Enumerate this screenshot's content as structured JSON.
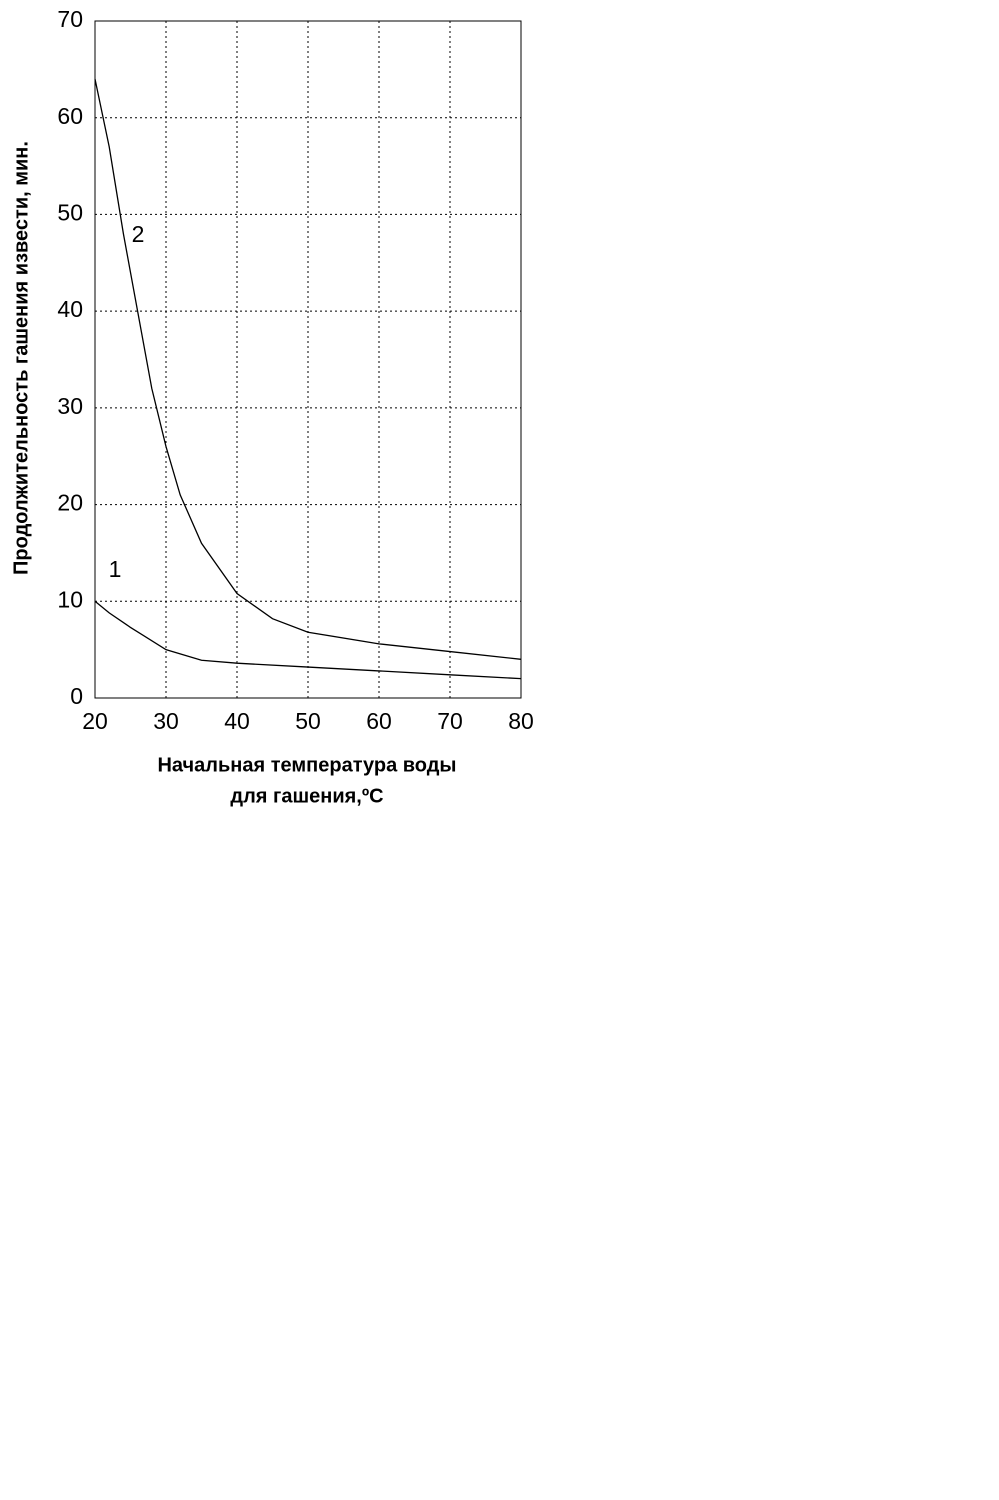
{
  "chart_data": {
    "type": "line",
    "y_label": "Продолжительность гашения извести, мин.",
    "x_label": [
      "Начальная температура воды",
      "для гашения,ºC"
    ],
    "xlim": [
      20,
      80
    ],
    "xticks": [
      20,
      30,
      40,
      50,
      60,
      70,
      80
    ],
    "ylim": [
      0,
      70
    ],
    "yticks": [
      0,
      10,
      20,
      30,
      40,
      50,
      60,
      70
    ],
    "grid": true,
    "series": [
      {
        "name": "1",
        "color": "#000000",
        "x": [
          20,
          22,
          25,
          30,
          35,
          40,
          50,
          60,
          70,
          80
        ],
        "values": [
          10,
          8.8,
          7.3,
          5.0,
          3.9,
          3.6,
          3.2,
          2.8,
          2.4,
          2.0
        ]
      },
      {
        "name": "2",
        "color": "#000000",
        "x": [
          20,
          22,
          24,
          26,
          28,
          30,
          32,
          35,
          40,
          45,
          50,
          60,
          70,
          80
        ],
        "values": [
          64,
          57,
          48,
          40,
          32,
          26,
          21,
          16,
          10.8,
          8.2,
          6.8,
          5.6,
          4.8,
          4.0
        ]
      }
    ]
  }
}
